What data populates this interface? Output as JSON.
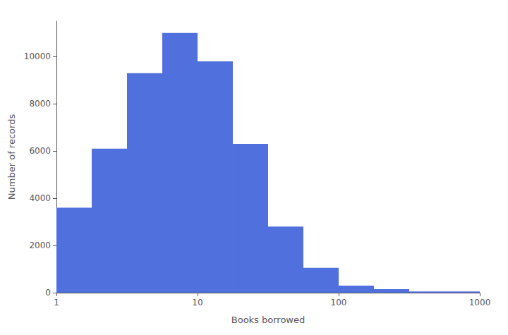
{
  "chart_data": {
    "type": "histogram",
    "xlabel": "Books borrowed",
    "ylabel": "Number of records",
    "bins": [
      1.0,
      1.778,
      3.162,
      5.623,
      10.0,
      17.78,
      31.62,
      56.23,
      100.0,
      177.8,
      316.2,
      1000.0
    ],
    "values": [
      3600,
      6100,
      9300,
      11000,
      9800,
      6300,
      2800,
      1050,
      300,
      150,
      50
    ],
    "log": "x",
    "xlim": [
      1.0,
      1000.0
    ],
    "ylim": [
      0,
      11500
    ],
    "xticks": [
      1,
      10,
      100,
      1000
    ],
    "yticks": [
      0,
      2000,
      4000,
      6000,
      8000,
      10000
    ],
    "grid": false
  }
}
